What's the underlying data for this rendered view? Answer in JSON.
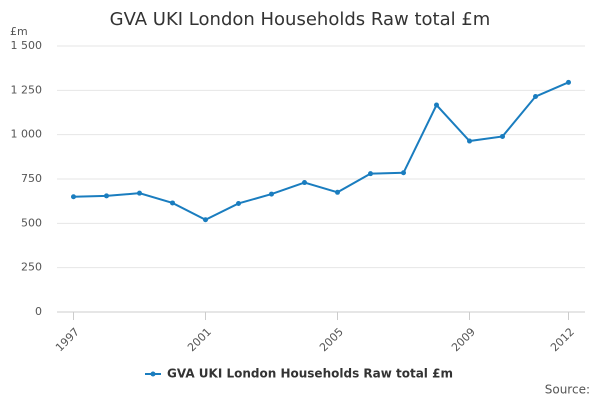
{
  "chart_data": {
    "type": "line",
    "title": "GVA UKI London Households Raw total £m",
    "y_unit": "£m",
    "source": "Source:",
    "x": [
      1997,
      1998,
      1999,
      2000,
      2001,
      2002,
      2003,
      2004,
      2005,
      2006,
      2007,
      2008,
      2009,
      2010,
      2011,
      2012
    ],
    "series": [
      {
        "name": "GVA UKI London Households Raw total £m",
        "color": "#1a7dbf",
        "values": [
          650,
          655,
          670,
          615,
          520,
          612,
          665,
          730,
          675,
          780,
          785,
          1167,
          964,
          990,
          1215,
          1295
        ]
      }
    ],
    "xlim": [
      1996.5,
      2012.5
    ],
    "xticks": [
      1997,
      2001,
      2005,
      2009,
      2012
    ],
    "ylim": [
      0,
      1500
    ],
    "yticks": [
      0,
      250,
      500,
      750,
      {
        "value": 1000,
        "label": "1 000"
      },
      {
        "value": 1250,
        "label": "1 250"
      },
      {
        "value": 1500,
        "label": "1 500"
      }
    ],
    "grid": true
  }
}
